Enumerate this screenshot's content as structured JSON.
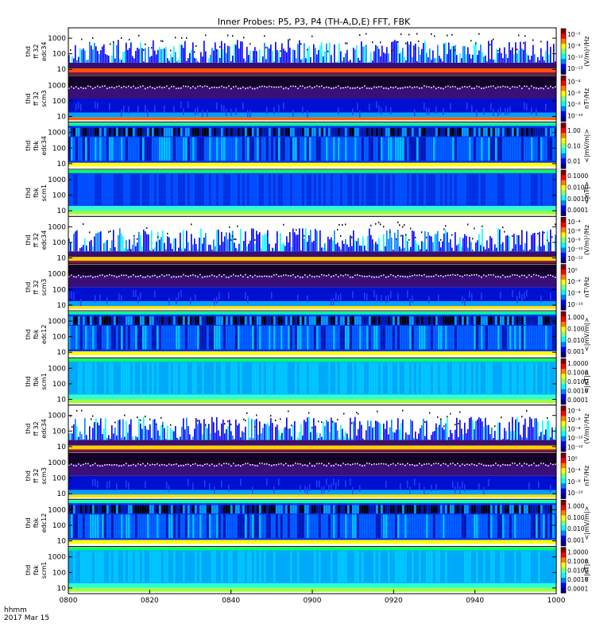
{
  "title": "Inner Probes: P5, P3, P4 (TH-A,D,E) FFT, FBK",
  "footer": {
    "time_format": "hhmm",
    "date": "2017 Mar 15"
  },
  "chart_data": {
    "type": "heatmap",
    "x_axis": {
      "ticks": [
        "0800",
        "0820",
        "0840",
        "0900",
        "0920",
        "0940",
        "1000"
      ],
      "range": [
        "08:00",
        "10:00"
      ]
    },
    "panels": [
      {
        "probe": "thd",
        "kind": "ff 32",
        "sensor": "edc34",
        "y_ticks": [
          "1000",
          "100",
          "10"
        ],
        "cb_unit": "(V/m)²/Hz",
        "cb_ticks": [
          "10⁻⁵",
          "10⁻⁸",
          "10⁻¹⁰",
          "10⁻¹³"
        ],
        "style": "edc",
        "yellow_band": "orange"
      },
      {
        "probe": "thd",
        "kind": "ff 32",
        "sensor": "scm3",
        "y_ticks": [
          "1000",
          "100",
          "10"
        ],
        "cb_unit": "nT²/Hz",
        "cb_ticks": [
          "10⁻⁴",
          "10⁻⁶",
          "10⁻⁸",
          "10⁻¹⁰"
        ],
        "style": "scm_ff",
        "yellow_band": "orange"
      },
      {
        "probe": "thd",
        "kind": "fbk",
        "sensor": "edc34",
        "y_ticks": [
          "1000",
          "100",
          "10"
        ],
        "cb_unit": "<|mV/m|>",
        "cb_ticks": [
          "1.00",
          "0.10",
          "0.01"
        ],
        "style": "fbk_e",
        "yellow_band": "yellow"
      },
      {
        "probe": "thd",
        "kind": "fbk",
        "sensor": "scm1",
        "y_ticks": [
          "1000",
          "100",
          "10"
        ],
        "cb_unit": "<|nT|>",
        "cb_ticks": [
          "0.1000",
          "0.0100",
          "0.0010",
          "0.0001"
        ],
        "style": "fbk_b",
        "yellow_band": "yellow"
      },
      {
        "probe": "thd",
        "kind": "ff 32",
        "sensor": "edc34",
        "y_ticks": [
          "1000",
          "100",
          "10"
        ],
        "cb_unit": "(V/m)²/Hz",
        "cb_ticks": [
          "10⁻⁴",
          "10⁻⁶",
          "10⁻⁸",
          "10⁻¹⁰",
          "10⁻¹²"
        ],
        "style": "edc",
        "yellow_band": "yellow"
      },
      {
        "probe": "thd",
        "kind": "ff 32",
        "sensor": "scm3",
        "y_ticks": [
          "1000",
          "100",
          "10"
        ],
        "cb_unit": "nT²/Hz",
        "cb_ticks": [
          "10⁰",
          "10⁻⁴",
          "10⁻⁸",
          "10⁻¹⁰"
        ],
        "style": "scm_ff",
        "yellow_band": "yellow"
      },
      {
        "probe": "thd",
        "kind": "fbk",
        "sensor": "edc12",
        "y_ticks": [
          "1000",
          "100",
          "10"
        ],
        "cb_unit": "<|mV/m|>",
        "cb_ticks": [
          "1.000",
          "0.100",
          "0.010",
          "0.001"
        ],
        "style": "fbk_e",
        "yellow_band": "yellow"
      },
      {
        "probe": "thd",
        "kind": "fbk",
        "sensor": "scm1",
        "y_ticks": [
          "1000",
          "100",
          "10"
        ],
        "cb_unit": "<|nT|>",
        "cb_ticks": [
          "1.0000",
          "0.1000",
          "0.0100",
          "0.0010",
          "0.0001"
        ],
        "style": "fbk_b",
        "yellow_band": "yellow"
      },
      {
        "probe": "thd",
        "kind": "ff 32",
        "sensor": "edc34",
        "y_ticks": [
          "1000",
          "100",
          "10"
        ],
        "cb_unit": "(V/m)²/Hz",
        "cb_ticks": [
          "10⁻⁴",
          "10⁻⁶",
          "10⁻⁸",
          "10⁻¹⁰",
          "10⁻¹²"
        ],
        "style": "edc",
        "yellow_band": "yellow"
      },
      {
        "probe": "thd",
        "kind": "ff 32",
        "sensor": "scm3",
        "y_ticks": [
          "1000",
          "100",
          "10"
        ],
        "cb_unit": "nT²/Hz",
        "cb_ticks": [
          "10⁰",
          "10⁻⁴",
          "10⁻⁸",
          "10⁻¹⁰"
        ],
        "style": "scm_ff",
        "yellow_band": "yellow"
      },
      {
        "probe": "thd",
        "kind": "fbk",
        "sensor": "edc12",
        "y_ticks": [
          "1000",
          "100",
          "10"
        ],
        "cb_unit": "<|mV/m|>",
        "cb_ticks": [
          "1.000",
          "0.100",
          "0.010",
          "0.001"
        ],
        "style": "fbk_e",
        "yellow_band": "yellow"
      },
      {
        "probe": "thd",
        "kind": "fbk",
        "sensor": "scm1",
        "y_ticks": [
          "1000",
          "100",
          "10"
        ],
        "cb_unit": "<|nT|>",
        "cb_ticks": [
          "1.0000",
          "0.1000",
          "0.0100",
          "0.0010",
          "0.0001"
        ],
        "style": "fbk_b",
        "yellow_band": "yellow"
      }
    ],
    "colors": {
      "colormap": [
        "#000080",
        "#0000ff",
        "#0080ff",
        "#00ffff",
        "#80ff80",
        "#ffff00",
        "#ff8000",
        "#ff0000",
        "#800000"
      ]
    }
  }
}
